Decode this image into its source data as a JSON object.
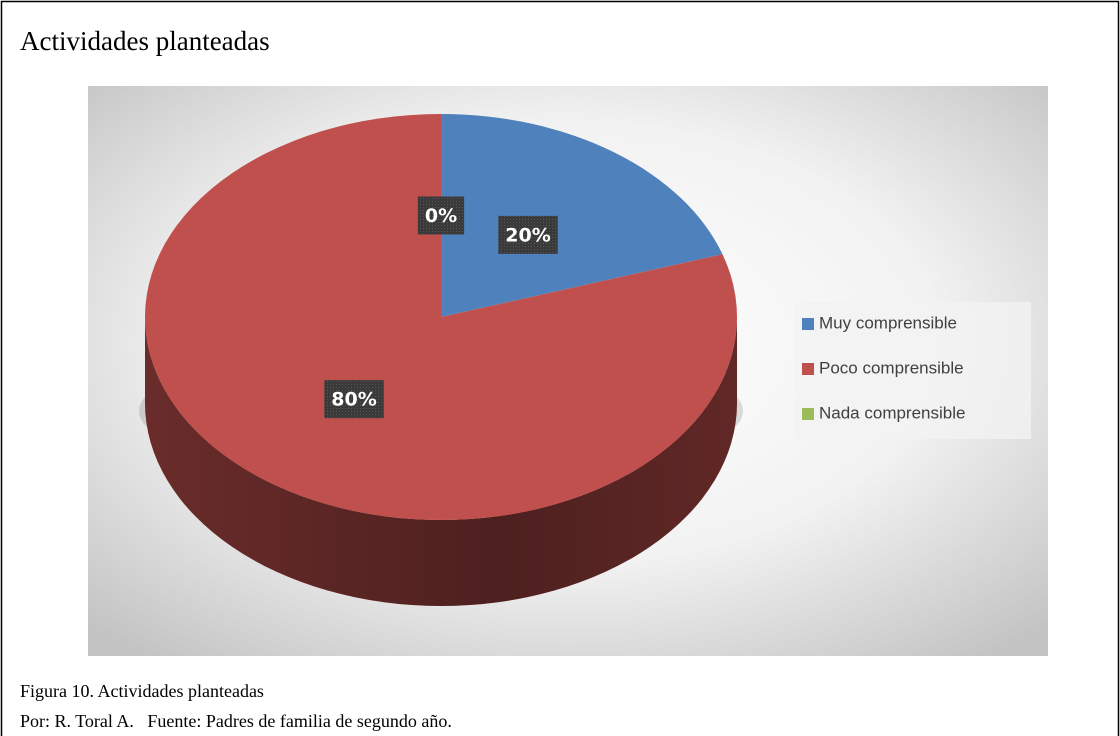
{
  "chart_data": {
    "type": "pie",
    "title": "Actividades planteadas",
    "categories": [
      "Muy comprensible",
      "Poco comprensible",
      "Nada comprensible"
    ],
    "values": [
      20,
      80,
      0
    ],
    "value_labels": [
      "20%",
      "80%",
      "0%"
    ],
    "colors": [
      "#4f81bd",
      "#c0504d",
      "#9bbb59"
    ],
    "legend": "right"
  },
  "caption": {
    "figure": "Figura 10. Actividades planteadas",
    "source": "Por: R. Toral A.   Fuente: Padres de familia de segundo año."
  }
}
